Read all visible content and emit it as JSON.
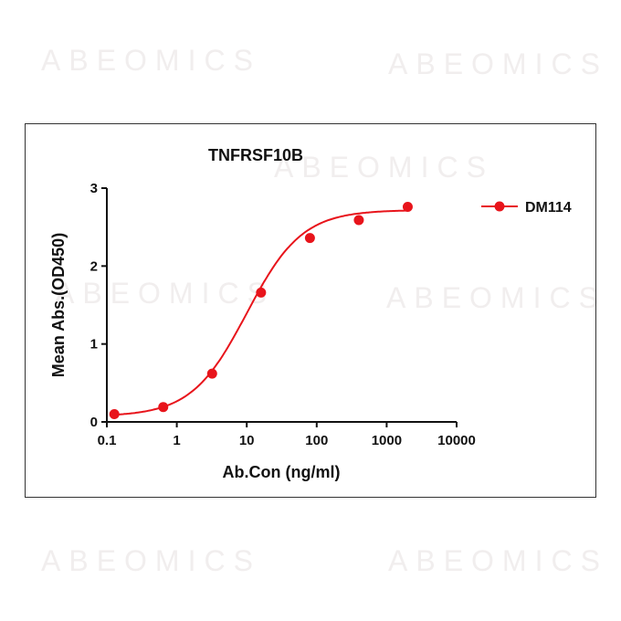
{
  "watermark": "ABEOMICS",
  "chart_data": {
    "type": "scatter",
    "title": "TNFRSF10B",
    "xlabel": "Ab.Con (ng/ml)",
    "ylabel": "Mean Abs.(OD450)",
    "xscale": "log",
    "xlim": [
      0.1,
      10000
    ],
    "ylim": [
      0,
      3
    ],
    "xticks": [
      "0.1",
      "1",
      "10",
      "100",
      "1000",
      "10000"
    ],
    "yticks": [
      "0",
      "1",
      "2",
      "3"
    ],
    "grid": false,
    "legend_position": "top-right",
    "series": [
      {
        "name": "DM114",
        "color": "#e8141b",
        "fit": "sigmoidal curve",
        "x": [
          0.128,
          0.64,
          3.2,
          16,
          80,
          400,
          2000
        ],
        "y": [
          0.1,
          0.19,
          0.62,
          1.66,
          2.36,
          2.59,
          2.76
        ]
      }
    ]
  }
}
